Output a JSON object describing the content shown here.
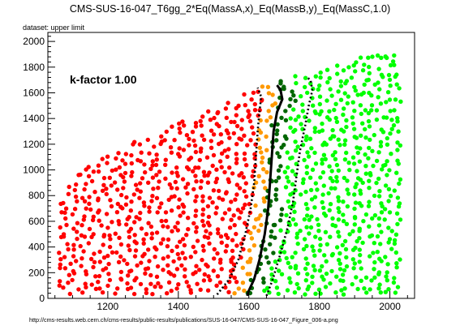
{
  "chart_data": {
    "type": "scatter",
    "title": "CMS-SUS-16-047_T6gg_2*Eq(MassA,x)_Eq(MassB,y)_Eq(MassC,1.0)",
    "subtitle": "dataset: upper limit",
    "annotation": "k-factor 1.00",
    "footer": "http://cms-results.web.cern.ch/cms-results/public-results/publications/SUS-16-047/CMS-SUS-16-047_Figure_006-a.png",
    "xlabel": "",
    "ylabel": "",
    "xlim": [
      1030,
      2070
    ],
    "ylim": [
      0,
      2070
    ],
    "x_ticks": [
      1200,
      1400,
      1600,
      1800,
      2000
    ],
    "y_ticks": [
      0,
      200,
      400,
      600,
      800,
      1000,
      1200,
      1400,
      1600,
      1800,
      2000
    ],
    "grid": false,
    "colors": {
      "red": "#ff0000",
      "orange": "#ff9900",
      "dark_green": "#006600",
      "green": "#00ff00",
      "line": "#000000"
    },
    "regions": {
      "x_min": 1060,
      "x_max": 2040,
      "y_min": 30,
      "upper_edge": [
        [
          1060,
          850
        ],
        [
          1150,
          1050
        ],
        [
          1300,
          1250
        ],
        [
          1450,
          1420
        ],
        [
          1550,
          1550
        ],
        [
          1640,
          1660
        ],
        [
          1700,
          1720
        ],
        [
          1800,
          1780
        ],
        [
          1900,
          1860
        ],
        [
          2000,
          1960
        ],
        [
          2040,
          1950
        ]
      ],
      "orange_band": [
        -45,
        -10
      ],
      "dark_green_band": [
        -10,
        40
      ]
    },
    "limit_line": [
      [
        1595,
        20
      ],
      [
        1600,
        60
      ],
      [
        1615,
        150
      ],
      [
        1630,
        300
      ],
      [
        1645,
        500
      ],
      [
        1655,
        700
      ],
      [
        1660,
        900
      ],
      [
        1665,
        1100
      ],
      [
        1670,
        1300
      ],
      [
        1680,
        1450
      ],
      [
        1695,
        1550
      ],
      [
        1690,
        1620
      ],
      [
        1680,
        1660
      ]
    ],
    "limit_line_lower": [
      [
        1510,
        30
      ],
      [
        1545,
        150
      ],
      [
        1570,
        300
      ],
      [
        1590,
        500
      ],
      [
        1605,
        700
      ],
      [
        1615,
        900
      ],
      [
        1620,
        1100
      ],
      [
        1625,
        1300
      ],
      [
        1630,
        1450
      ],
      [
        1635,
        1570
      ],
      [
        1625,
        1640
      ]
    ],
    "limit_line_upper": [
      [
        1650,
        20
      ],
      [
        1668,
        150
      ],
      [
        1690,
        350
      ],
      [
        1710,
        550
      ],
      [
        1725,
        750
      ],
      [
        1735,
        950
      ],
      [
        1745,
        1150
      ],
      [
        1760,
        1350
      ],
      [
        1770,
        1500
      ],
      [
        1780,
        1620
      ],
      [
        1775,
        1700
      ],
      [
        1765,
        1720
      ]
    ]
  }
}
